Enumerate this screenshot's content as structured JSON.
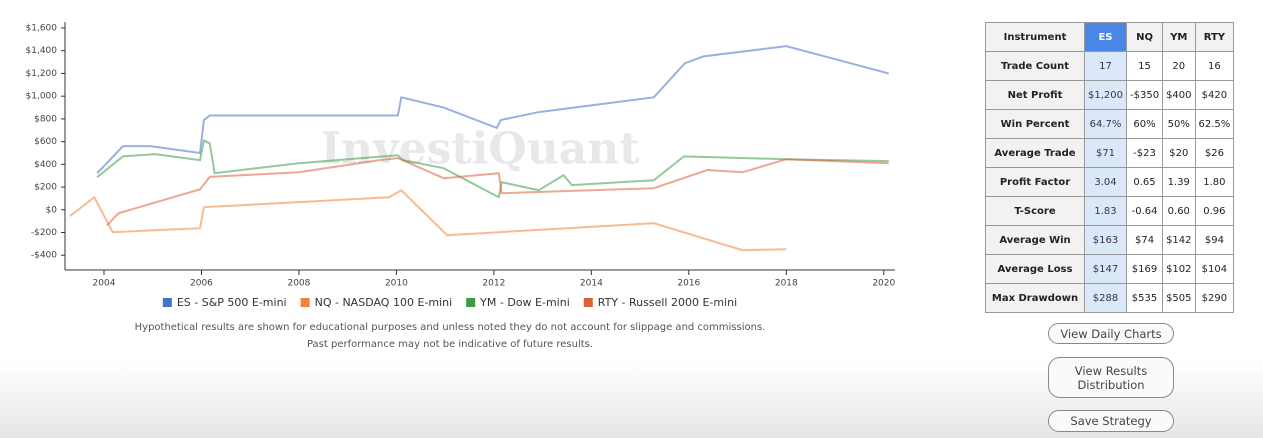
{
  "chart_data": {
    "type": "line",
    "watermark": "InvestiQuant",
    "notes": [
      "Hypothetical results are shown for educational purposes and unless noted they do not account for slippage and commissions.",
      "Past performance may not be indicative of future results."
    ],
    "xlim": [
      2003.2,
      2020.23
    ],
    "xticks": [
      2004,
      2006,
      2008,
      2010,
      2012,
      2014,
      2016,
      2018,
      2020
    ],
    "ylim": [
      -530,
      1600
    ],
    "yticks": [
      {
        "value": -400,
        "label": "-$400"
      },
      {
        "value": -200,
        "label": "-$200"
      },
      {
        "value": 0,
        "label": "$0"
      },
      {
        "value": 200,
        "label": "$200"
      },
      {
        "value": 400,
        "label": "$400"
      },
      {
        "value": 600,
        "label": "$600"
      },
      {
        "value": 800,
        "label": "$800"
      },
      {
        "value": 1000,
        "label": "$1,000"
      },
      {
        "value": 1200,
        "label": "$1,200"
      },
      {
        "value": 1400,
        "label": "$1,400"
      },
      {
        "value": 1600,
        "label": "$1,600"
      }
    ],
    "legend": "bottom",
    "series": [
      {
        "name": "ES - S&P 500 E-mini",
        "color": "#4472c4",
        "x": [
          2003.86,
          2004.39,
          2004.95,
          2005.97,
          2006.05,
          2006.17,
          2010.03,
          2010.1,
          2010.97,
          2012.06,
          2012.14,
          2012.92,
          2015.28,
          2015.92,
          2016.3,
          2018,
          2020.1
        ],
        "values": [
          322,
          560,
          560,
          500,
          790,
          830,
          830,
          990,
          900,
          720,
          790,
          860,
          990,
          1290,
          1350,
          1440,
          1200
        ]
      },
      {
        "name": "NQ - NASDAQ 100 E-mini",
        "color": "#f0843c",
        "x": [
          2003.3,
          2003.8,
          2004.18,
          2005.97,
          2006.05,
          2008,
          2009.85,
          2010.1,
          2011.04,
          2015.28,
          2017.1,
          2018
        ],
        "values": [
          -56,
          110,
          -197,
          -162,
          23,
          67,
          110,
          172,
          -224,
          -118,
          -356,
          -347
        ]
      },
      {
        "name": "YM - Dow E-mini",
        "color": "#3d9b47",
        "x": [
          2003.86,
          2004.39,
          2005.05,
          2005.97,
          2006.05,
          2006.17,
          2006.27,
          2008,
          2010.03,
          2010.13,
          2010.97,
          2012.1,
          2012.16,
          2012.92,
          2013.43,
          2013.6,
          2015.28,
          2015.9,
          2018,
          2020.1
        ],
        "values": [
          287,
          470,
          490,
          437,
          610,
          585,
          322,
          410,
          480,
          437,
          366,
          110,
          243,
          172,
          305,
          217,
          260,
          470,
          445,
          428
        ]
      },
      {
        "name": "RTY - Russell 2000 E-mini",
        "color": "#d9623a",
        "x": [
          2004.06,
          2004.3,
          2005.97,
          2006.17,
          2008,
          2009.65,
          2010.03,
          2010.97,
          2012.1,
          2012.16,
          2015.28,
          2016.38,
          2017.1,
          2018,
          2020.1
        ],
        "values": [
          -137,
          -30,
          180,
          290,
          330,
          437,
          455,
          278,
          322,
          146,
          190,
          350,
          330,
          445,
          410
        ]
      }
    ]
  },
  "table": {
    "header": [
      "Instrument",
      "ES",
      "NQ",
      "YM",
      "RTY"
    ],
    "rows": [
      [
        "Trade Count",
        "17",
        "15",
        "20",
        "16"
      ],
      [
        "Net Profit",
        "$1,200",
        "-$350",
        "$400",
        "$420"
      ],
      [
        "Win Percent",
        "64.7%",
        "60%",
        "50%",
        "62.5%"
      ],
      [
        "Average Trade",
        "$71",
        "-$23",
        "$20",
        "$26"
      ],
      [
        "Profit Factor",
        "3.04",
        "0.65",
        "1.39",
        "1.80"
      ],
      [
        "T-Score",
        "1.83",
        "-0.64",
        "0.60",
        "0.96"
      ],
      [
        "Average Win",
        "$163",
        "$74",
        "$142",
        "$94"
      ],
      [
        "Average Loss",
        "$147",
        "$169",
        "$102",
        "$104"
      ],
      [
        "Max Drawdown",
        "$288",
        "$535",
        "$505",
        "$290"
      ]
    ]
  },
  "buttons": [
    "View Daily Charts",
    "View Results Distribution",
    "Save Strategy"
  ]
}
